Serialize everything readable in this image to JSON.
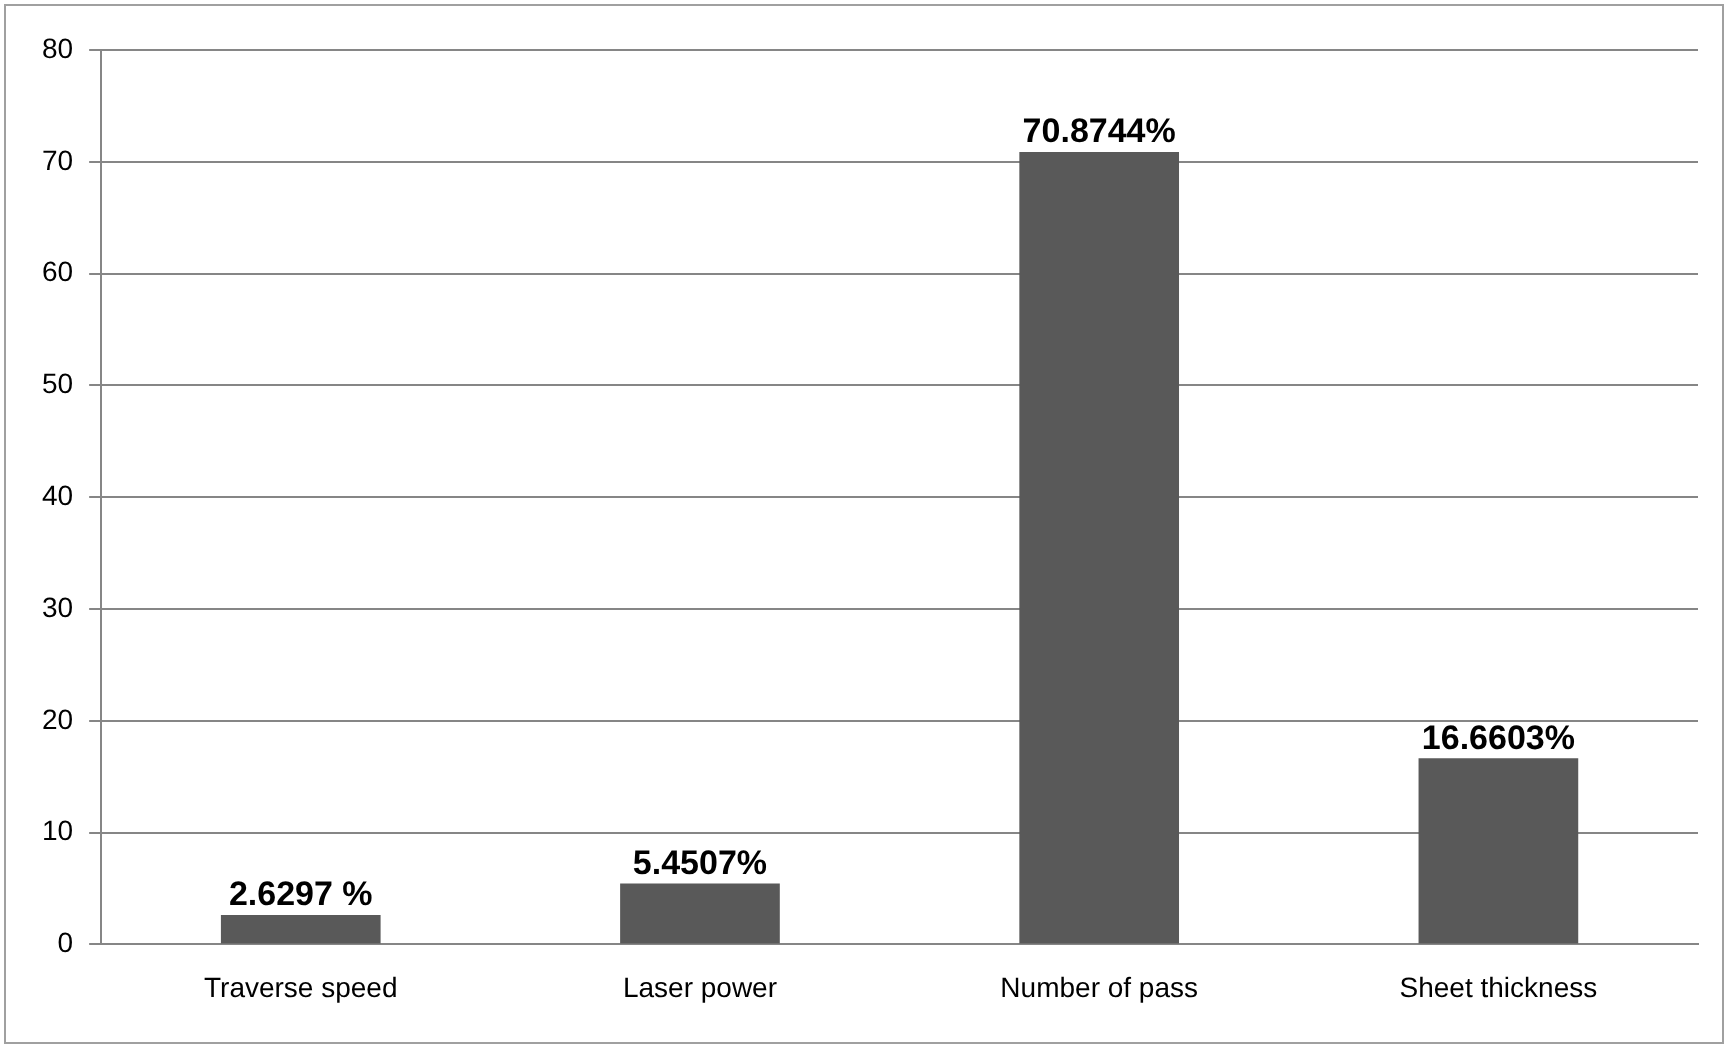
{
  "chart_data": {
    "type": "bar",
    "categories": [
      "Traverse speed",
      "Laser power",
      "Number of pass",
      "Sheet thickness"
    ],
    "values": [
      2.6297,
      5.4507,
      70.8744,
      16.6603
    ],
    "value_labels": [
      "2.6297 %",
      "5.4507%",
      "70.8744%",
      "16.6603%"
    ],
    "color": "#595959",
    "ylim": [
      0,
      80
    ],
    "yticks": [
      0,
      10,
      20,
      30,
      40,
      50,
      60,
      70,
      80
    ],
    "grid": "y",
    "legend": false
  }
}
